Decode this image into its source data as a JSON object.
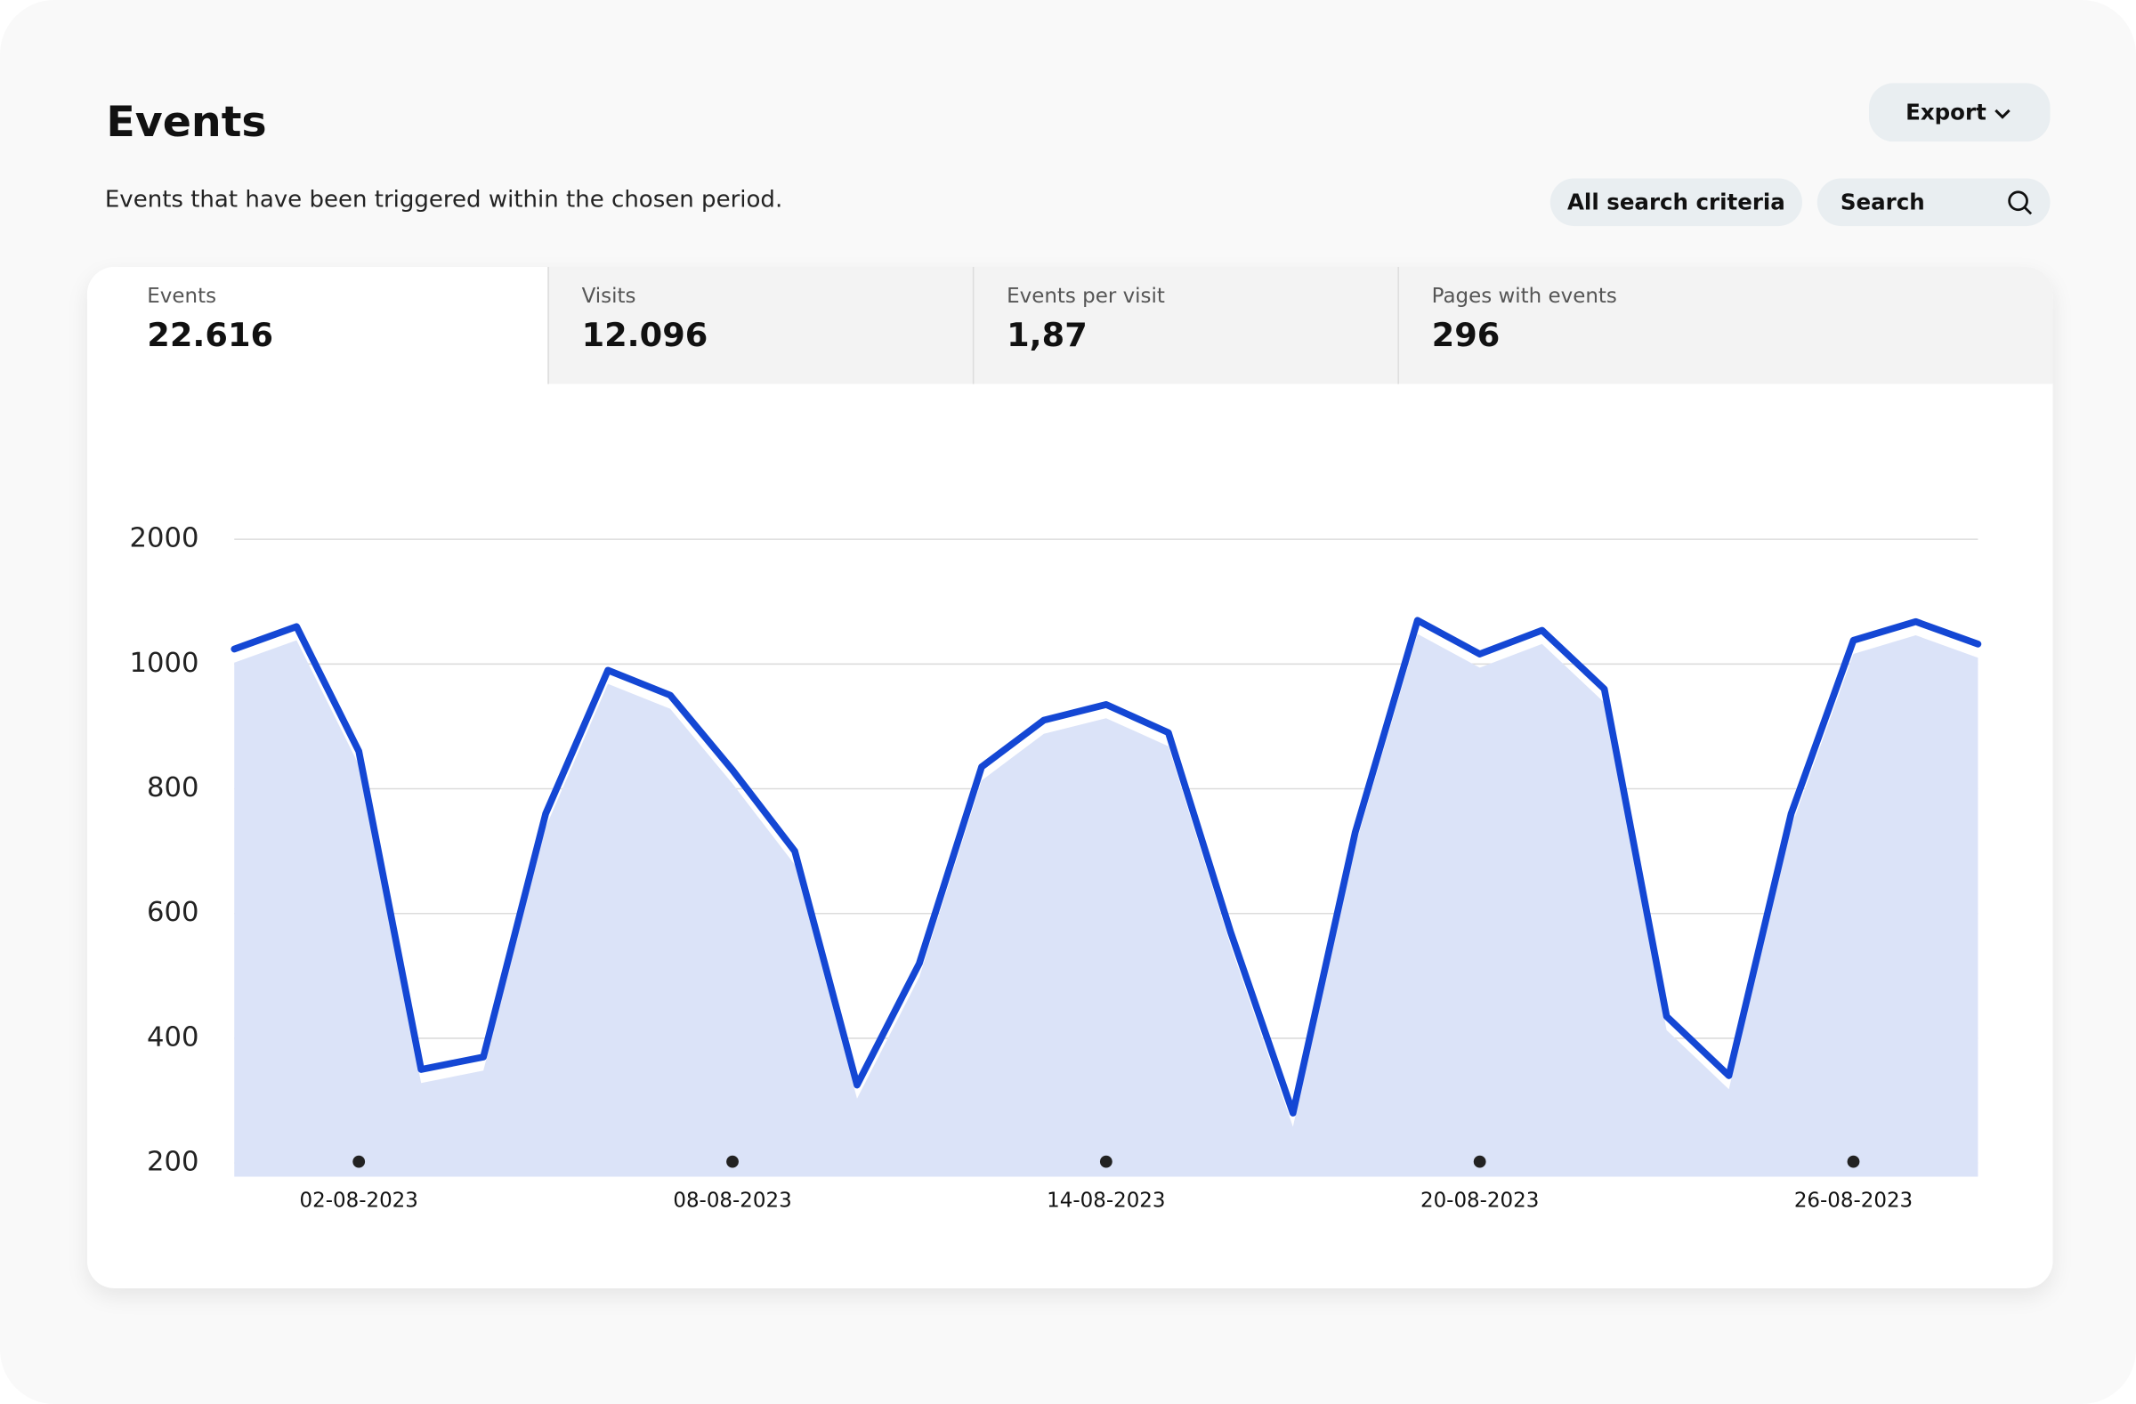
{
  "header": {
    "title": "Events",
    "subtitle": "Events that have been triggered within the chosen period.",
    "export": "Export",
    "criteria": "All search criteria",
    "search": "Search"
  },
  "tabs": [
    {
      "label": "Events",
      "value": "22.616"
    },
    {
      "label": "Visits",
      "value": "12.096"
    },
    {
      "label": "Events per visit",
      "value": "1,87"
    },
    {
      "label": "Pages with events",
      "value": "296"
    }
  ],
  "chart_data": {
    "type": "area",
    "x": [
      "31-07-2023",
      "01-08-2023",
      "02-08-2023",
      "03-08-2023",
      "04-08-2023",
      "05-08-2023",
      "06-08-2023",
      "07-08-2023",
      "08-08-2023",
      "09-08-2023",
      "10-08-2023",
      "11-08-2023",
      "12-08-2023",
      "13-08-2023",
      "14-08-2023",
      "15-08-2023",
      "16-08-2023",
      "17-08-2023",
      "18-08-2023",
      "19-08-2023",
      "20-08-2023",
      "21-08-2023",
      "22-08-2023",
      "23-08-2023",
      "24-08-2023",
      "25-08-2023",
      "26-08-2023",
      "27-08-2023",
      "28-08-2023"
    ],
    "series": [
      {
        "name": "Events",
        "color": "#1447d4",
        "values": [
          1120,
          1300,
          860,
          350,
          370,
          760,
          990,
          950,
          830,
          700,
          325,
          520,
          835,
          910,
          935,
          890,
          570,
          280,
          730,
          1350,
          1080,
          1270,
          960,
          435,
          340,
          760,
          1190,
          1340,
          1160
        ]
      }
    ],
    "xticks": [
      "02-08-2023",
      "08-08-2023",
      "14-08-2023",
      "20-08-2023",
      "26-08-2023"
    ],
    "ylim": [
      200,
      2000
    ],
    "yticks": [
      200,
      400,
      600,
      800,
      1000,
      2000
    ],
    "grid": true
  }
}
